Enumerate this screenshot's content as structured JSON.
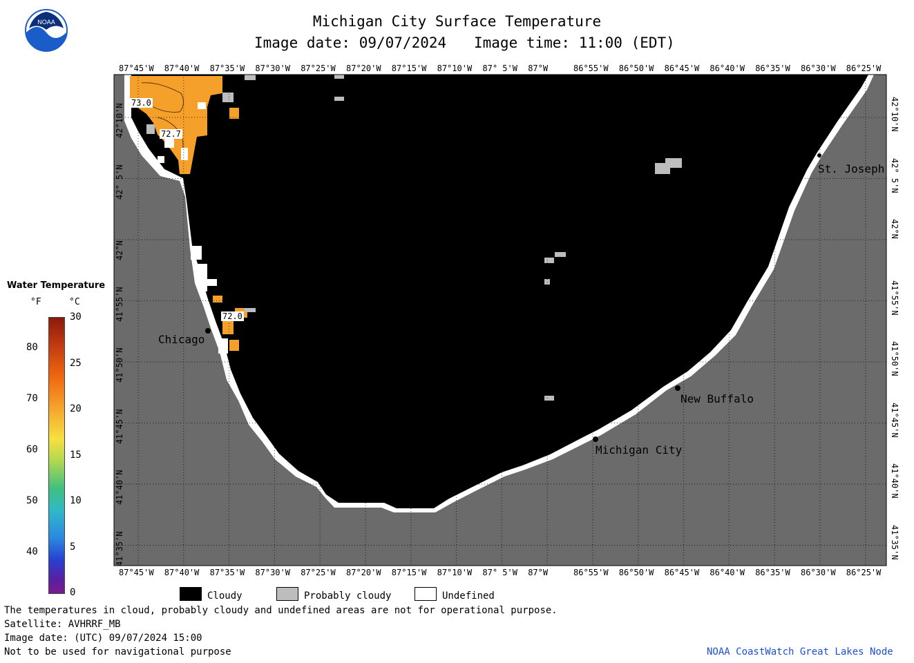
{
  "header": {
    "title": "Michigan City Surface Temperature",
    "date_label": "Image date: 09/07/2024",
    "time_label": "Image time: 11:00 (EDT)"
  },
  "lon_ticks": [
    "87°45'W",
    "87°40'W",
    "87°35'W",
    "87°30'W",
    "87°25'W",
    "87°20'W",
    "87°15'W",
    "87°10'W",
    "87° 5'W",
    "87°W",
    "86°55'W",
    "86°50'W",
    "86°45'W",
    "86°40'W",
    "86°35'W",
    "86°30'W",
    "86°25'W"
  ],
  "lat_ticks": [
    "42°10'N",
    "42° 5'N",
    "42°N",
    "41°55'N",
    "41°50'N",
    "41°45'N",
    "41°40'N",
    "41°35'N"
  ],
  "cities": {
    "chicago": "Chicago",
    "st_joseph": "St. Joseph",
    "new_buffalo": "New Buffalo",
    "michigan_city": "Michigan City"
  },
  "temp_labels": {
    "a": "73.0",
    "b": "72.7",
    "c": "72.0"
  },
  "colorbar": {
    "title": "Water Temperature",
    "unit_f": "°F",
    "unit_c": "°C",
    "f_ticks": [
      "80",
      "70",
      "60",
      "50",
      "40"
    ],
    "c_ticks": [
      "30",
      "25",
      "20",
      "15",
      "10",
      "5",
      "0"
    ]
  },
  "legend": {
    "cloudy": "Cloudy",
    "probably_cloudy": "Probably cloudy",
    "undefined": "Undefined"
  },
  "footer": {
    "note": "The temperatures in cloud, probably cloudy and undefined areas are not for operational purpose.",
    "satellite": "Satellite: AVHRRF_MB",
    "utc_date": "Image date: (UTC) 09/07/2024  15:00",
    "nav_warning": "Not to be used for navigational purpose",
    "credit": "NOAA CoastWatch Great Lakes Node"
  },
  "colors": {
    "land": "#6b6b6b",
    "cloudy": "#000000",
    "probably_cloudy": "#bdbdbd",
    "undefined": "#ffffff",
    "warm_water": "#f5a02a",
    "noaa_blue": "#1a5cc8",
    "credit_blue": "#1f4fd1"
  }
}
